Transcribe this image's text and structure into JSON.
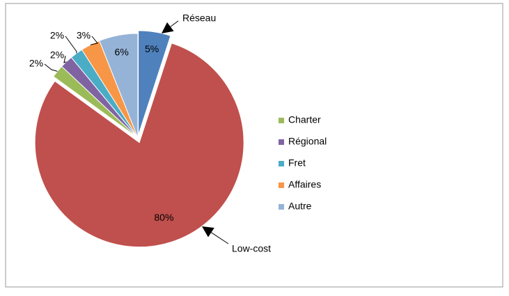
{
  "chart_data": {
    "type": "pie",
    "categories": [
      "Réseau",
      "Low-cost",
      "Charter",
      "Régional",
      "Fret",
      "Affaires",
      "Autre"
    ],
    "values": [
      5,
      80,
      2,
      2,
      2,
      3,
      6
    ],
    "value_labels": [
      "5%",
      "80%",
      "2%",
      "2%",
      "2%",
      "3%",
      "6%"
    ],
    "colors": [
      "#4f81bd",
      "#c0504d",
      "#9bbb59",
      "#8064a2",
      "#4bacc6",
      "#f79646",
      "#95b3d7"
    ],
    "callouts": [
      true,
      true,
      false,
      false,
      false,
      false,
      false
    ],
    "legend": "right"
  }
}
